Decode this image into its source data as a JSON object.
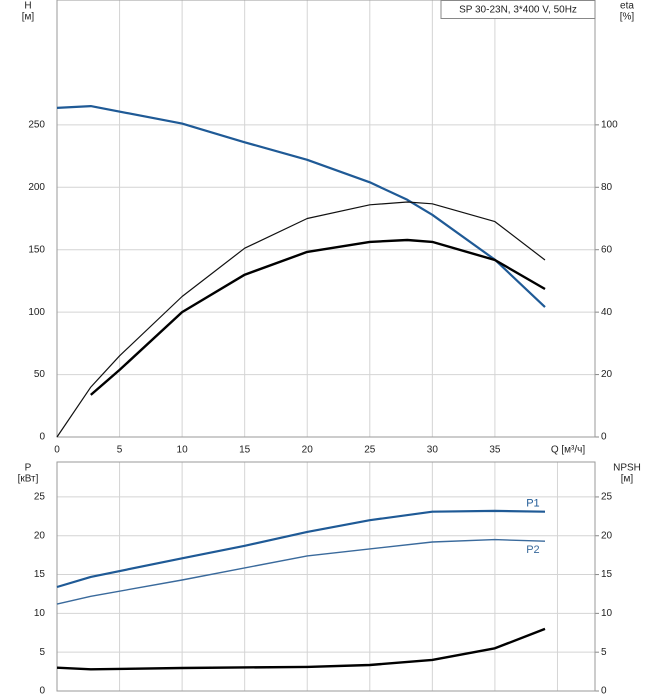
{
  "chart_data": [
    {
      "type": "line",
      "title": "SP 30-23N, 3*400 V, 50Hz",
      "ylabel": "H",
      "yunit": "[м]",
      "y2label": "eta",
      "y2unit": "[%]",
      "xlabel": "Q [м³/ч]",
      "xlim": [
        0,
        43
      ],
      "xticks": [
        0,
        5,
        10,
        15,
        20,
        25,
        30,
        35
      ],
      "show_xtick_labels": true,
      "ylim": [
        0,
        350
      ],
      "yticks": [
        0,
        50,
        100,
        150,
        200,
        250
      ],
      "y2lim": [
        0,
        140
      ],
      "y2ticks": [
        0,
        20,
        40,
        60,
        80,
        100
      ],
      "grid": true,
      "series": [
        {
          "color": "#1f5a96",
          "line_width": 2.2,
          "x": [
            0,
            2.7,
            10,
            15,
            20,
            25,
            28,
            30,
            35,
            39
          ],
          "values": [
            263.6,
            265,
            251,
            236,
            222,
            204,
            190,
            178,
            142,
            104
          ]
        },
        {
          "color": "#111111",
          "line_width": 1.2,
          "axis": "y2",
          "x": [
            0,
            2.7,
            5,
            10,
            15,
            20,
            25,
            28,
            30,
            35,
            39
          ],
          "values": [
            0,
            16,
            26,
            45,
            60.5,
            70,
            74.4,
            75.3,
            74.7,
            69,
            56.7
          ]
        },
        {
          "color": "#000000",
          "line_width": 2.4,
          "axis": "y2",
          "x": [
            2.7,
            5,
            10,
            15,
            20,
            25,
            28,
            30,
            35,
            39
          ],
          "values": [
            13.5,
            21.5,
            40,
            52,
            59.3,
            62.5,
            63.1,
            62.5,
            56.7,
            47.4
          ]
        }
      ]
    },
    {
      "type": "line",
      "ylabel": "P",
      "yunit": "[кВт]",
      "y2label": "NPSH",
      "y2unit": "[м]",
      "xlim": [
        0,
        43
      ],
      "xticks": [
        0,
        5,
        10,
        15,
        20,
        25,
        30,
        35,
        40
      ],
      "show_xtick_labels": false,
      "ylim": [
        0,
        29.5
      ],
      "yticks": [
        0,
        5,
        10,
        15,
        20,
        25
      ],
      "y2lim": [
        0,
        29.5
      ],
      "y2ticks": [
        0,
        5,
        10,
        15,
        20,
        25
      ],
      "grid": true,
      "series": [
        {
          "name": "P1",
          "color": "#1f5a96",
          "line_width": 2.2,
          "x": [
            0,
            2.7,
            10,
            15,
            20,
            25,
            30,
            35,
            39
          ],
          "values": [
            13.4,
            14.7,
            17.1,
            18.7,
            20.5,
            22,
            23.1,
            23.2,
            23.1
          ]
        },
        {
          "name": "P2",
          "color": "#3a6a9c",
          "line_width": 1.4,
          "x": [
            0,
            2.7,
            10,
            20,
            30,
            35,
            39
          ],
          "values": [
            11.2,
            12.2,
            14.3,
            17.4,
            19.2,
            19.5,
            19.3
          ]
        },
        {
          "color": "#000000",
          "line_width": 2.4,
          "axis": "y2",
          "x": [
            0,
            2.7,
            10,
            20,
            25,
            30,
            35,
            39
          ],
          "values": [
            3.0,
            2.8,
            2.96,
            3.1,
            3.35,
            4.0,
            5.5,
            8.0
          ]
        }
      ]
    }
  ]
}
